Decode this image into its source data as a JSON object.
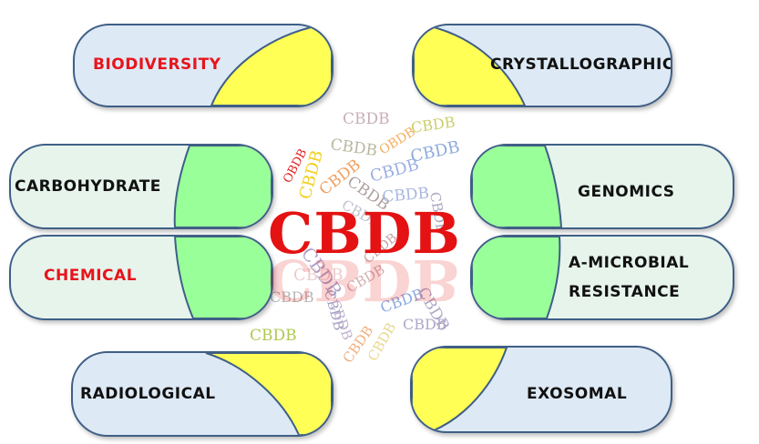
{
  "center": {
    "title": "CBDB"
  },
  "pills": {
    "biodiversity": "BIODIVERSITY",
    "crystallographic": "CRYSTALLOGRAPHIC",
    "carbohydrate": "CARBOHYDRATE",
    "genomics": "GENOMICS",
    "chemical": "CHEMICAL",
    "antimicrobial_line1": "A-MICROBIAL",
    "antimicrobial_line2": "RESISTANCE",
    "radiological": "RADIOLOGICAL",
    "exosomal": "EXOSOMAL"
  },
  "cloud": {
    "word": "CBDB",
    "alt_word": "OBDB"
  },
  "colors": {
    "yellow": "#ffff55",
    "green": "#99ff99",
    "blue_pill": "#dde9f5",
    "green_pill": "#e6f4ec",
    "border": "#3f5f86",
    "accent_red": "#e8141c"
  }
}
